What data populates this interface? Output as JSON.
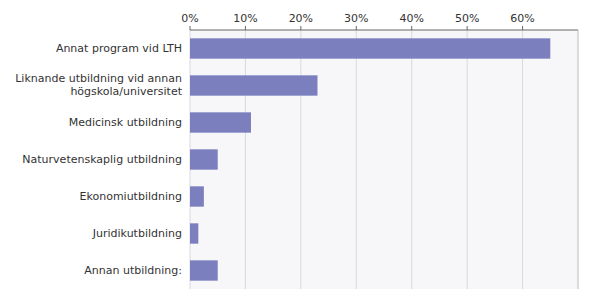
{
  "chart_data": {
    "type": "bar",
    "orientation": "horizontal",
    "categories": [
      "Annan utbildning:",
      "Juridikutbildning",
      "Ekonomiutbildning",
      "Naturvetenskaplig utbildning",
      "Medicinsk utbildning",
      "Liknande utbildning vid annan\nhögskola/universitet",
      "Annat program vid LTH"
    ],
    "values": [
      5.0,
      1.5,
      2.5,
      5.0,
      11.0,
      23.0,
      65.0
    ],
    "color": "#7b7fbe",
    "xlim": [
      0,
      70
    ],
    "xticks": [
      {
        "value": 0,
        "label": "0%"
      },
      {
        "value": 10,
        "label": "10%"
      },
      {
        "value": 20,
        "label": "20%"
      },
      {
        "value": 30,
        "label": "30%"
      },
      {
        "value": 40,
        "label": "40%"
      },
      {
        "value": 50,
        "label": "50%"
      },
      {
        "value": 60,
        "label": "60%"
      }
    ],
    "grid": true
  }
}
